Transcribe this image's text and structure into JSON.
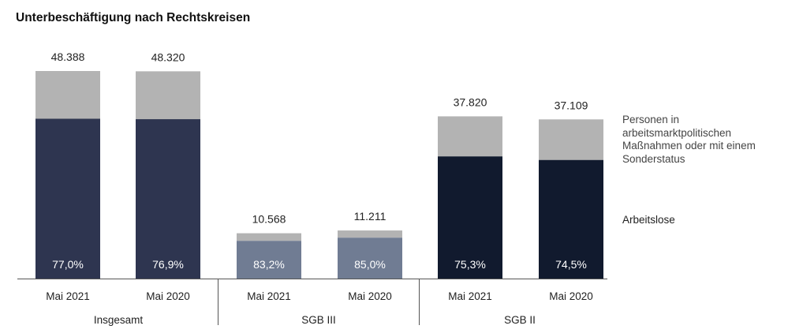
{
  "chart_data": {
    "type": "bar",
    "stacked": true,
    "title": "Unterbeschäftigung nach Rechtskreisen",
    "xlabel": "",
    "ylabel": "",
    "groups": [
      "Insgesamt",
      "SGB III",
      "SGB II"
    ],
    "bars": [
      {
        "group": "Insgesamt",
        "category": "Mai 2021",
        "total": 48388,
        "total_label": "48.388",
        "share_label": "77,0%",
        "share": 77.0,
        "color": "#2e3550"
      },
      {
        "group": "Insgesamt",
        "category": "Mai 2020",
        "total": 48320,
        "total_label": "48.320",
        "share_label": "76,9%",
        "share": 76.9,
        "color": "#2e3550"
      },
      {
        "group": "SGB III",
        "category": "Mai 2021",
        "total": 10568,
        "total_label": "10.568",
        "share_label": "83,2%",
        "share": 83.2,
        "color": "#707c93"
      },
      {
        "group": "SGB III",
        "category": "Mai 2020",
        "total": 11211,
        "total_label": "11.211",
        "share_label": "85,0%",
        "share": 85.0,
        "color": "#707c93"
      },
      {
        "group": "SGB II",
        "category": "Mai 2021",
        "total": 37820,
        "total_label": "37.820",
        "share_label": "75,3%",
        "share": 75.3,
        "color": "#111a2e"
      },
      {
        "group": "SGB II",
        "category": "Mai 2020",
        "total": 37109,
        "total_label": "37.109",
        "share_label": "74,5%",
        "share": 74.5,
        "color": "#111a2e"
      }
    ],
    "series": [
      {
        "name": "Arbeitslose",
        "color": "by-group"
      },
      {
        "name": "Personen in arbeitsmarktpolitischen Maßnahmen oder mit einem Sonderstatus",
        "color": "#b3b3b3"
      }
    ],
    "ylim": [
      0,
      50000
    ],
    "grid": false,
    "legend_position": "right"
  },
  "legend": {
    "other_label": "Personen in arbeitsmarktpolitischen Maßnahmen oder mit einem Sonderstatus",
    "unemployed_label": "Arbeitslose"
  },
  "colors": {
    "other": "#b3b3b3",
    "insgesamt": "#2e3550",
    "sgb3": "#707c93",
    "sgb2": "#111a2e",
    "axis": "#555555"
  }
}
